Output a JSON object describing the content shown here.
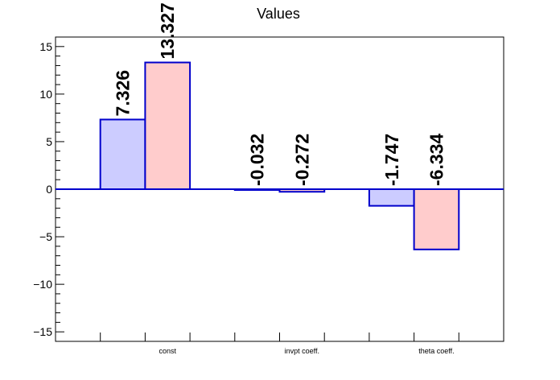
{
  "chart_data": {
    "type": "bar",
    "title": "Values",
    "xlabel": "",
    "ylabel": "",
    "ylim": [
      -16,
      16
    ],
    "yticks": [
      -15,
      -10,
      -5,
      0,
      5,
      10,
      15
    ],
    "ytick_labels": [
      "−15",
      "−10",
      "−5",
      "0",
      "5",
      "10",
      "15"
    ],
    "categories": [
      "const",
      "invpt coeff.",
      "theta coeff."
    ],
    "grid": false,
    "series": [
      {
        "color": "#ccccff",
        "values": [
          7.326,
          -0.032,
          -1.747
        ],
        "labels": [
          "7.326",
          "-0.032",
          "-1.747"
        ]
      },
      {
        "color": "#ffcccc",
        "values": [
          13.327,
          -0.272,
          -6.334
        ],
        "labels": [
          "13.327",
          "-0.272",
          "-6.334"
        ]
      }
    ],
    "bar_edge_color": "#0000cc",
    "zero_line_color": "#0000cc"
  }
}
